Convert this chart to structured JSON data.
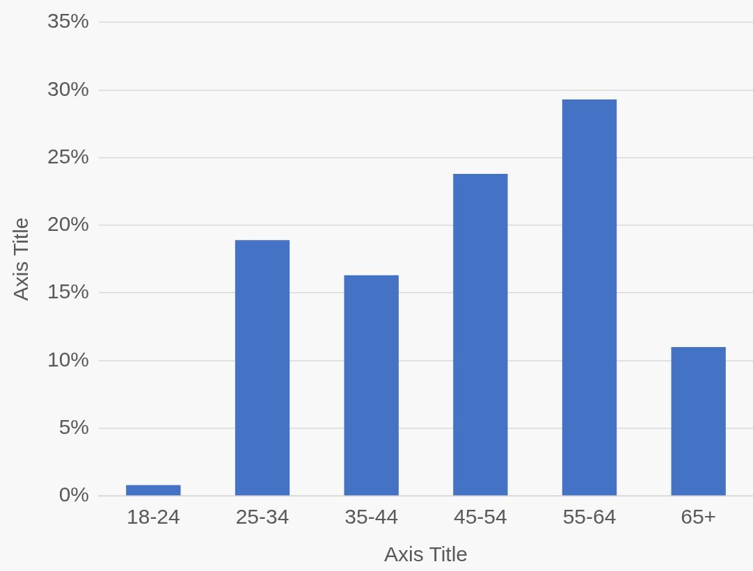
{
  "chart_data": {
    "type": "bar",
    "xlabel": "Axis Title",
    "ylabel": "Axis Title",
    "categories": [
      "18-24",
      "25-34",
      "35-44",
      "45-54",
      "55-64",
      "65+"
    ],
    "values": [
      0.8,
      18.9,
      16.3,
      23.8,
      29.3,
      11.0
    ],
    "color": "#4472c4",
    "ylim": [
      0,
      35
    ],
    "yticks": [
      {
        "value": 0,
        "label": "0%"
      },
      {
        "value": 5,
        "label": "5%"
      },
      {
        "value": 10,
        "label": "10%"
      },
      {
        "value": 15,
        "label": "15%"
      },
      {
        "value": 20,
        "label": "20%"
      },
      {
        "value": 25,
        "label": "25%"
      },
      {
        "value": 30,
        "label": "30%"
      },
      {
        "value": 35,
        "label": "35%"
      }
    ],
    "grid": "y",
    "legend": false
  }
}
